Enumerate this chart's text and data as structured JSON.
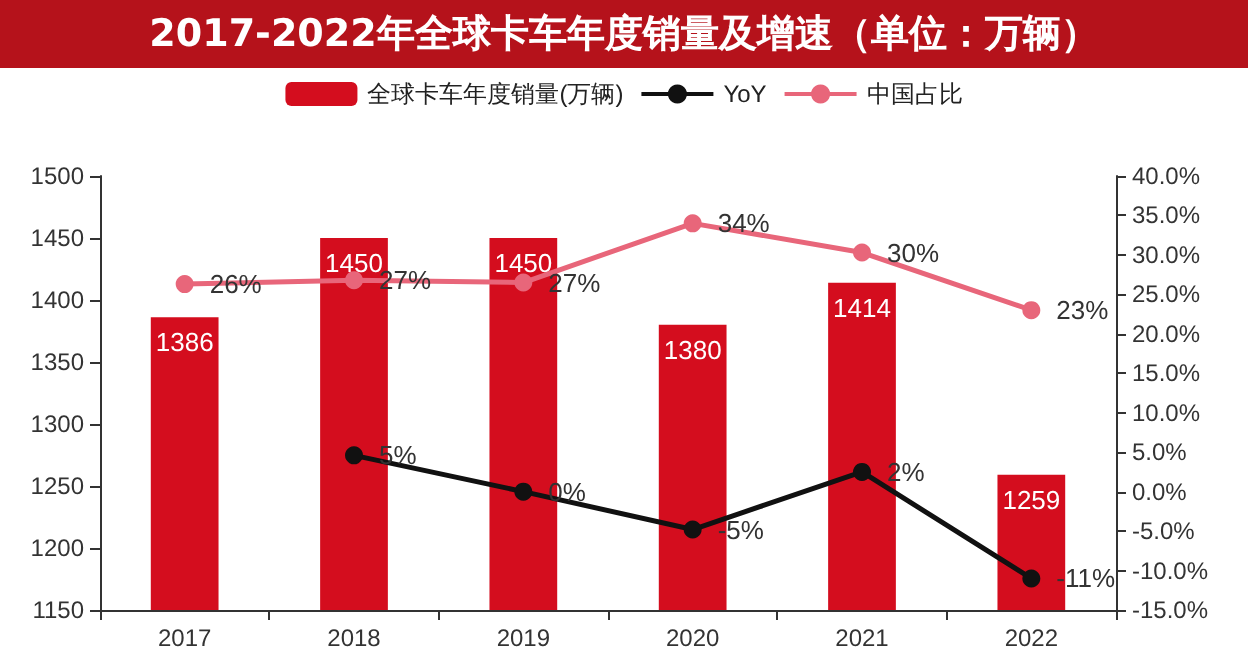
{
  "chart_data": {
    "type": "bar",
    "title": "2017-2022年全球卡车年度销量及增速（单位：万辆）",
    "categories": [
      "2017",
      "2018",
      "2019",
      "2020",
      "2021",
      "2022"
    ],
    "series": [
      {
        "name": "全球卡车年度销量(万辆)",
        "color": "#d40d1e",
        "values": [
          1386,
          1450,
          1450,
          1380,
          1414,
          1259
        ],
        "value_labels": [
          "1386",
          "1450",
          "1450",
          "1380",
          "1414",
          "1259"
        ]
      },
      {
        "name": "YoY",
        "type": "line",
        "axis": "y2",
        "color": "#111111",
        "values": [
          null,
          4.6,
          0,
          -4.8,
          2.5,
          -11
        ],
        "value_labels": [
          null,
          "5%",
          "0%",
          "-5%",
          "2%",
          "-11%"
        ]
      },
      {
        "name": "中国占比",
        "type": "line",
        "axis": "y2",
        "color": "#e8667a",
        "values": [
          26.3,
          26.8,
          26.5,
          34,
          30.3,
          23
        ],
        "value_labels": [
          "26%",
          "27%",
          "27%",
          "34%",
          "30%",
          "23%"
        ]
      }
    ],
    "ylim": [
      1150,
      1500
    ],
    "yticks": [
      1150,
      1200,
      1250,
      1300,
      1350,
      1400,
      1450,
      1500
    ],
    "y2lim": [
      -15,
      40
    ],
    "y2ticks": [
      {
        "value": -15,
        "label": "-15.0%"
      },
      {
        "value": -10,
        "label": "-10.0%"
      },
      {
        "value": -5,
        "label": "-5.0%"
      },
      {
        "value": 0,
        "label": "0.0%"
      },
      {
        "value": 5,
        "label": "5.0%"
      },
      {
        "value": 10,
        "label": "10.0%"
      },
      {
        "value": 15,
        "label": "15.0%"
      },
      {
        "value": 20,
        "label": "20.0%"
      },
      {
        "value": 25,
        "label": "25.0%"
      },
      {
        "value": 30,
        "label": "30.0%"
      },
      {
        "value": 35,
        "label": "35.0%"
      },
      {
        "value": 40,
        "label": "40.0%"
      }
    ],
    "legend": "top",
    "grid": false,
    "marker": "circle"
  }
}
